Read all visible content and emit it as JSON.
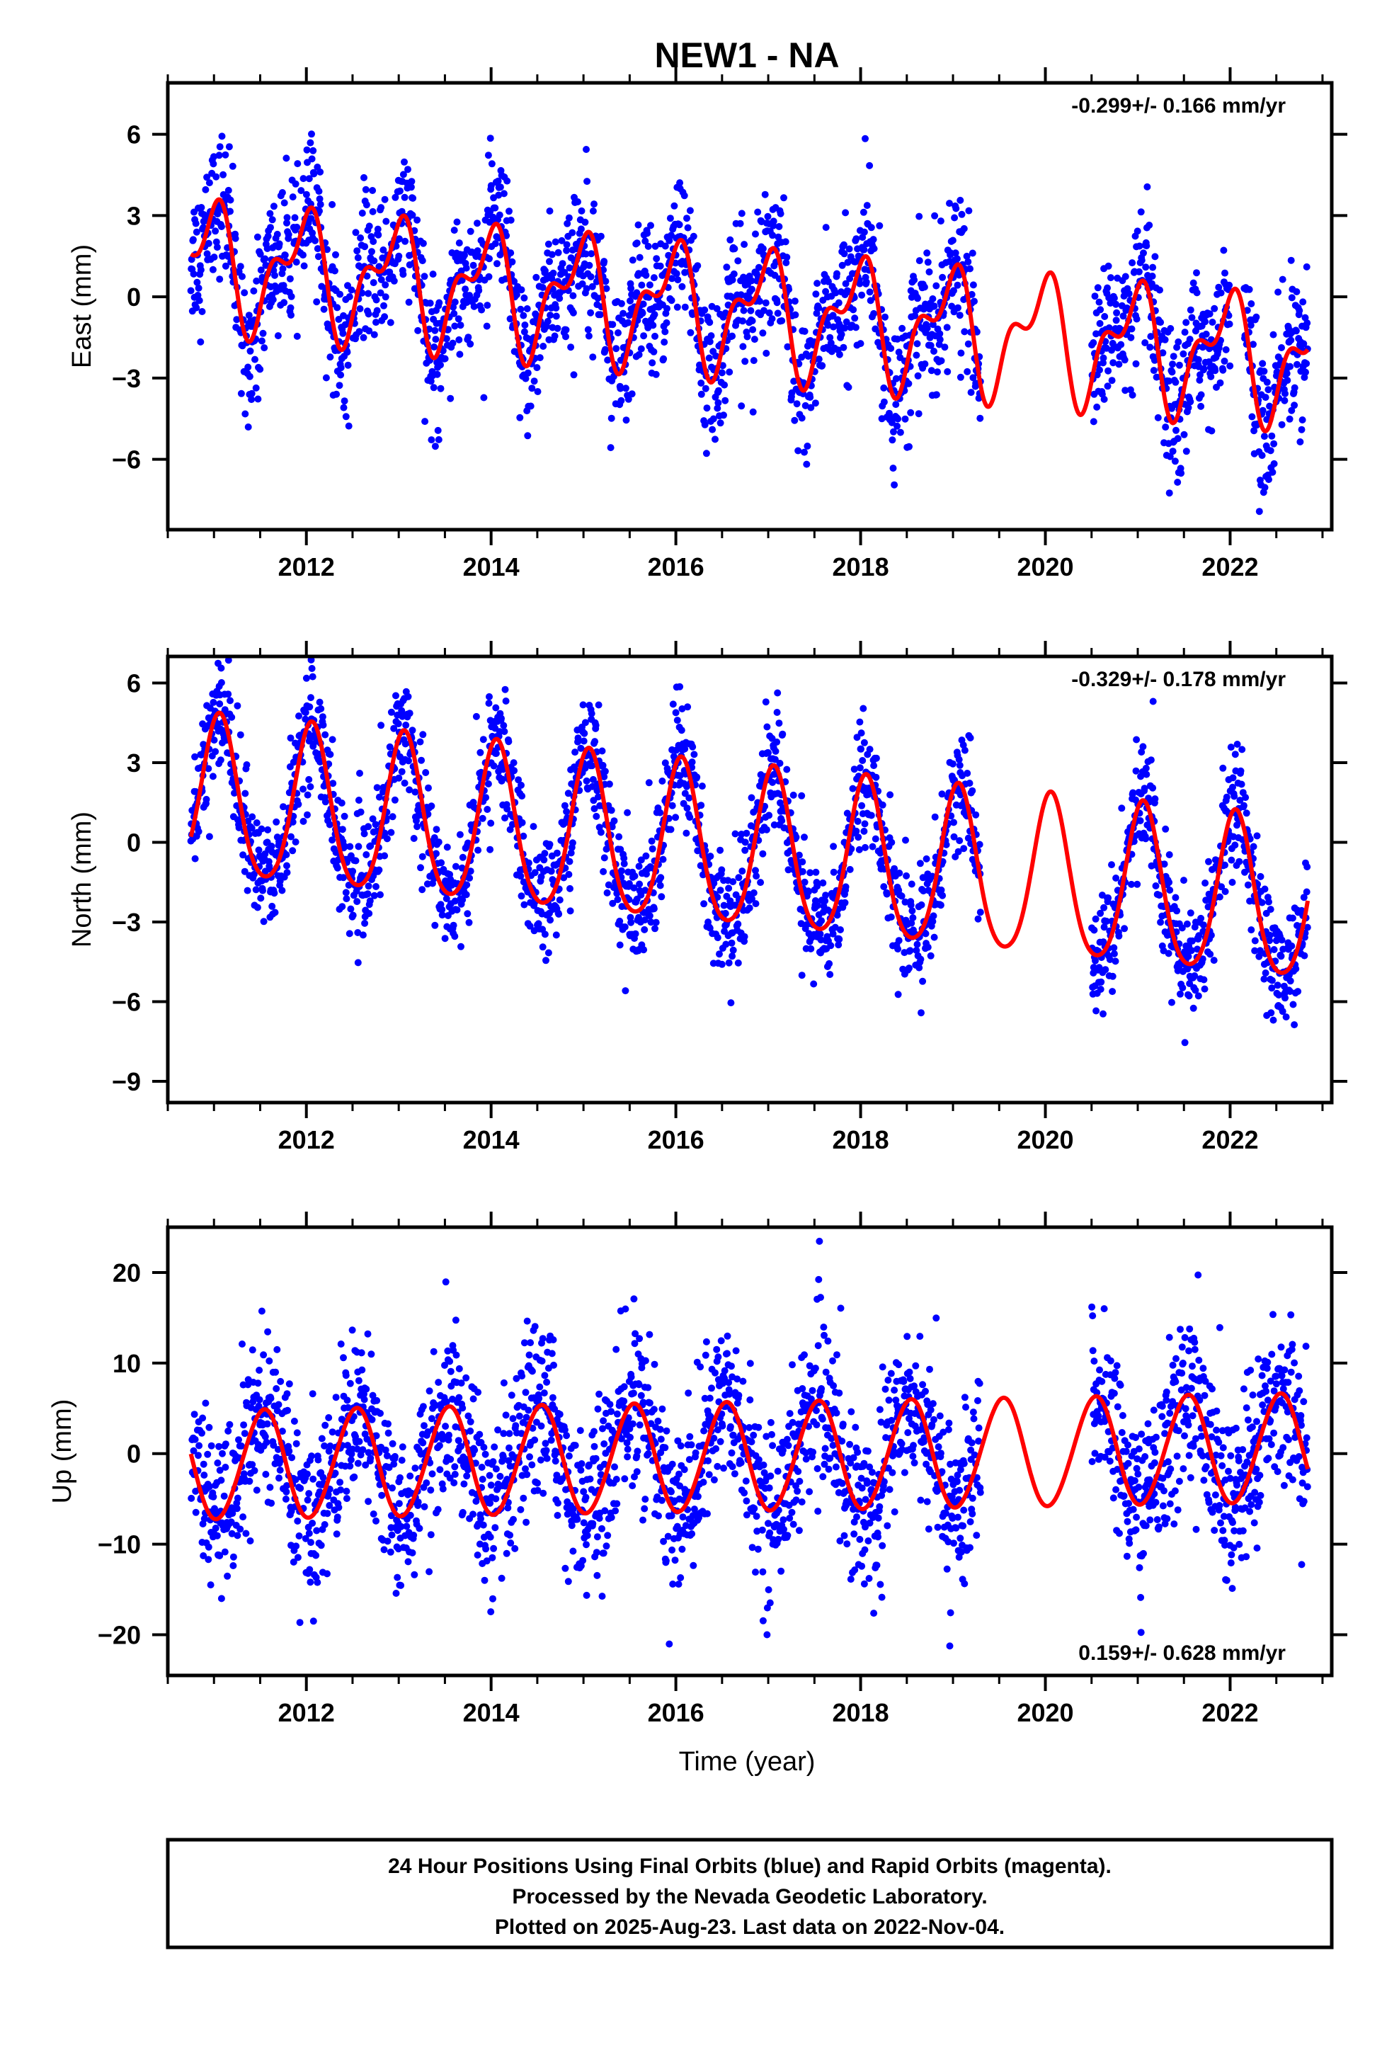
{
  "title": "NEW1 - NA",
  "colors": {
    "points": "#0000ff",
    "fit": "#ff0000",
    "frame": "#000000"
  },
  "xaxis_label": "Time (year)",
  "footer": {
    "line1": "24 Hour Positions Using Final Orbits (blue) and Rapid Orbits (magenta).",
    "line2": "Processed by the Nevada Geodetic Laboratory.",
    "line3": "Plotted on 2025-Aug-23. Last data on 2022-Nov-04."
  },
  "chart_data": [
    {
      "type": "scatter",
      "name": "east",
      "ylabel": "East (mm)",
      "rate": "-0.299+/- 0.166 mm/yr",
      "xlim": [
        2010.5,
        2023.1
      ],
      "ylim": [
        -8.6,
        7.9
      ],
      "xticks": [
        2012,
        2014,
        2016,
        2018,
        2020,
        2022
      ],
      "yticks": [
        6,
        3,
        0,
        -3,
        -6
      ],
      "ytick_labels": [
        "6",
        "3",
        "0",
        "−3",
        "−6"
      ],
      "gaps": [
        [
          2019.3,
          2020.5
        ],
        [
          2022.0,
          2022.15
        ]
      ],
      "series": [
        {
          "label": "daily positions (blue)",
          "x_range": [
            2010.75,
            2022.84
          ],
          "scatter": 1.3
        },
        {
          "label": "fit (red)",
          "fit": {
            "mean": 1.3,
            "trend": -0.3,
            "t0": 2010.7,
            "annual_amp": 1.9,
            "annual_phase": 1.9,
            "semiannual_amp": 1.1,
            "semiannual_phase": 0.3
          }
        }
      ]
    },
    {
      "type": "scatter",
      "name": "north",
      "ylabel": "North (mm)",
      "rate": "-0.329+/- 0.178 mm/yr",
      "xlim": [
        2010.5,
        2023.1
      ],
      "ylim": [
        -9.8,
        7.0
      ],
      "xticks": [
        2012,
        2014,
        2016,
        2018,
        2020,
        2022
      ],
      "yticks": [
        6,
        3,
        0,
        -3,
        -6,
        -9
      ],
      "ytick_labels": [
        "6",
        "3",
        "0",
        "−3",
        "−6",
        "−9"
      ],
      "gaps": [
        [
          2019.3,
          2020.5
        ]
      ],
      "series": [
        {
          "label": "daily positions (blue)",
          "x_range": [
            2010.75,
            2022.84
          ],
          "scatter": 1.1
        },
        {
          "label": "fit (red)",
          "fit": {
            "mean": 1.6,
            "trend": -0.33,
            "t0": 2010.7,
            "annual_amp": 3.0,
            "annual_phase": 1.2,
            "semiannual_amp": 0.4,
            "semiannual_phase": 0.8
          }
        }
      ]
    },
    {
      "type": "scatter",
      "name": "up",
      "ylabel": "Up (mm)",
      "rate": "0.159+/- 0.628 mm/yr",
      "xlim": [
        2010.5,
        2023.1
      ],
      "ylim": [
        -24.5,
        25.0
      ],
      "xticks": [
        2012,
        2014,
        2016,
        2018,
        2020,
        2022
      ],
      "yticks": [
        20,
        10,
        0,
        -10,
        -20
      ],
      "ytick_labels": [
        "20",
        "10",
        "0",
        "−10",
        "−20"
      ],
      "gaps": [
        [
          2019.3,
          2020.5
        ]
      ],
      "series": [
        {
          "label": "daily positions (blue)",
          "x_range": [
            2010.75,
            2022.84
          ],
          "scatter": 4.6
        },
        {
          "label": "fit (red)",
          "fit": {
            "mean": -1.4,
            "trend": 0.16,
            "t0": 2010.7,
            "annual_amp": 6.0,
            "annual_phase": -1.8,
            "semiannual_amp": 0.3,
            "semiannual_phase": 0.0
          }
        }
      ]
    }
  ]
}
